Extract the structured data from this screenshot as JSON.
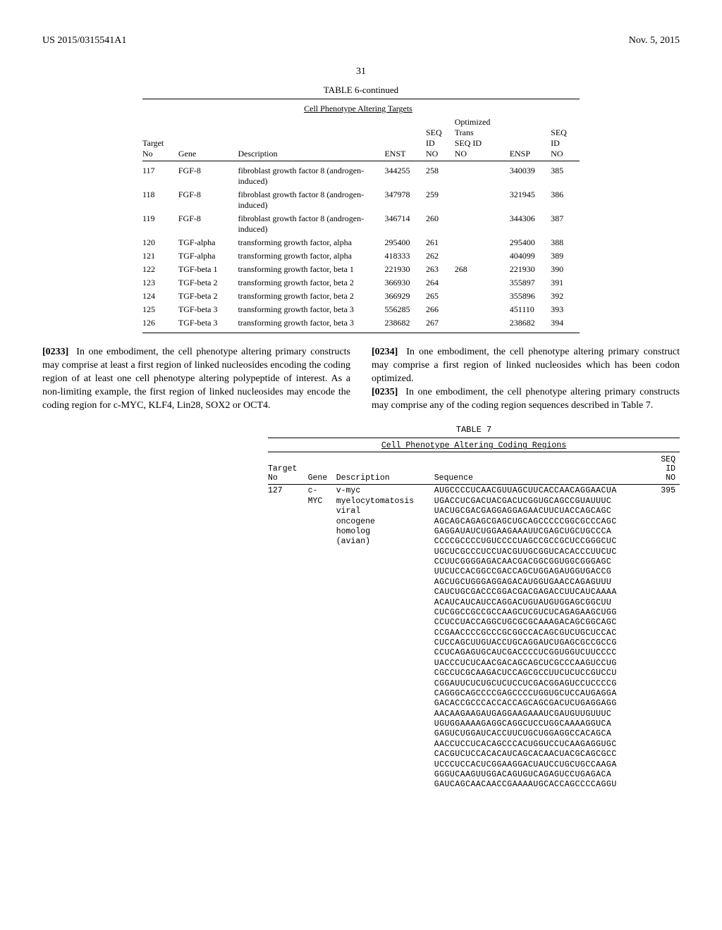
{
  "header": {
    "left": "US 2015/0315541A1",
    "right": "Nov. 5, 2015",
    "page": "31"
  },
  "table6": {
    "caption": "TABLE 6-continued",
    "subtitle": "Cell Phenotype Altering Targets",
    "columns": {
      "c1": "Target\nNo",
      "c2": "Gene",
      "c3": "Description",
      "c4": "ENST",
      "c5": "SEQ\nID\nNO",
      "c6": "Optimized\nTrans\nSEQ ID\nNO",
      "c7": "ENSP",
      "c8": "SEQ\nID\nNO"
    },
    "rows": [
      {
        "no": "117",
        "gene": "FGF-8",
        "desc": "fibroblast growth factor 8 (androgen-induced)",
        "enst": "344255",
        "seq1": "258",
        "opt": "",
        "ensp": "340039",
        "seq2": "385"
      },
      {
        "no": "118",
        "gene": "FGF-8",
        "desc": "fibroblast growth factor 8 (androgen-induced)",
        "enst": "347978",
        "seq1": "259",
        "opt": "",
        "ensp": "321945",
        "seq2": "386"
      },
      {
        "no": "119",
        "gene": "FGF-8",
        "desc": "fibroblast growth factor 8 (androgen-induced)",
        "enst": "346714",
        "seq1": "260",
        "opt": "",
        "ensp": "344306",
        "seq2": "387"
      },
      {
        "no": "120",
        "gene": "TGF-alpha",
        "desc": "transforming growth factor, alpha",
        "enst": "295400",
        "seq1": "261",
        "opt": "",
        "ensp": "295400",
        "seq2": "388"
      },
      {
        "no": "121",
        "gene": "TGF-alpha",
        "desc": "transforming growth factor, alpha",
        "enst": "418333",
        "seq1": "262",
        "opt": "",
        "ensp": "404099",
        "seq2": "389"
      },
      {
        "no": "122",
        "gene": "TGF-beta 1",
        "desc": "transforming growth factor, beta 1",
        "enst": "221930",
        "seq1": "263",
        "opt": "268",
        "ensp": "221930",
        "seq2": "390"
      },
      {
        "no": "123",
        "gene": "TGF-beta 2",
        "desc": "transforming growth factor, beta 2",
        "enst": "366930",
        "seq1": "264",
        "opt": "",
        "ensp": "355897",
        "seq2": "391"
      },
      {
        "no": "124",
        "gene": "TGF-beta 2",
        "desc": "transforming growth factor, beta 2",
        "enst": "366929",
        "seq1": "265",
        "opt": "",
        "ensp": "355896",
        "seq2": "392"
      },
      {
        "no": "125",
        "gene": "TGF-beta 3",
        "desc": "transforming growth factor, beta 3",
        "enst": "556285",
        "seq1": "266",
        "opt": "",
        "ensp": "451110",
        "seq2": "393"
      },
      {
        "no": "126",
        "gene": "TGF-beta 3",
        "desc": "transforming growth factor, beta 3",
        "enst": "238682",
        "seq1": "267",
        "opt": "",
        "ensp": "238682",
        "seq2": "394"
      }
    ]
  },
  "paras": {
    "p233_num": "[0233]",
    "p233": "In one embodiment, the cell phenotype altering primary constructs may comprise at least a first region of linked nucleosides encoding the coding region of at least one cell phenotype altering polypeptide of interest. As a non-limiting example, the first region of linked nucleosides may encode the coding region for c-MYC, KLF4, Lin28, SOX2 or OCT4.",
    "p234_num": "[0234]",
    "p234": "In one embodiment, the cell phenotype altering primary construct may comprise a first region of linked nucleosides which has been codon optimized.",
    "p235_num": "[0235]",
    "p235": "In one embodiment, the cell phenotype altering primary constructs may comprise any of the coding region sequences described in Table 7."
  },
  "table7": {
    "caption": "TABLE 7",
    "subtitle": "Cell Phenotype Altering Coding Regions",
    "columns": {
      "c1": "Target\nNo",
      "c2": "Gene",
      "c3": "Description",
      "c4": "Sequence",
      "c5": "SEQ\nID\nNO"
    },
    "row": {
      "no": "127",
      "gene": "c-\nMYC",
      "desc": "v-myc\nmyelocytomatosis\nviral\noncogene\nhomolog\n(avian)",
      "seq": "AUGCCCCUCAACGUUAGCUUCACCAACAGGAACUA\nUGACCUCGACUACGACUCGGUGCAGCCGUAUUUC\nUACUGCGACGAGGAGGAGAACUUCUACCAGCAGC\nAGCAGCAGAGCGAGCUGCAGCCCCCGGCGCCCAGC\nGAGGAUAUCUGGAAGAAAUUCGAGCUGCUGCCCA\nCCCCGCCCCUGUCCCCUAGCCGCCGCUCCGGGCUC\nUGCUCGCCCUCCUACGUUGCGGUCACACCCUUCUC\nCCUUCGGGGAGACAACGACGGCGGUGGCGGGAGC\nUUCUCCACGGCCGACCAGCUGGAGAUGGUGACCG\nAGCUGCUGGGAGGAGACAUGGUGAACCAGAGUUU\nCAUCUGCGACCCGGACGACGAGACCUUCAUCAAAA\nACAUCAUCAUCCAGGACUGUAUGUGGAGCGGCUU\nCUCGGCCGCCGCCAAGCUCGUCUCAGAGAAGCUGG\nCCUCCUACCAGGCUGCGCGCAAAGACAGCGGCAGC\nCCGAACCCCGCCCGCGGCCACAGCGUCUGCUCCAC\nCUCCAGCUUGUACCUGCAGGAUCUGAGCGCCGCCG\nCCUCAGAGUGCAUCGACCCCUCGGUGGUCUUCCCC\nUACCCUCUCAACGACAGCAGCUCGCCCAAGUCCUG\nCGCCUCGCAAGACUCCAGCGCCUUCUCUCCGUCCU\nCGGAUUCUCUGCUCUCCUCGACGGAGUCCUCCCCG\nCAGGGCAGCCCCGAGCCCCUGGUGCUCCAUGAGGA\nGACACCGCCCACCACCAGCAGCGACUCUGAGGAGG\nAACAAGAAGAUGAGGAAGAAAUCGAUGUUGUUUC\nUGUGGAAAAGAGGCAGGCUCCUGGCAAAAGGUCA\nGAGUCUGGAUCACCUUCUGCUGGAGGCCACAGCA\nAACCUCCUCACAGCCCACUGGUCCUCAAGAGGUGC\nCACGUCUCCACACAUCAGCACAACUACGCAGCGCC\nUCCCUCCACUCGGAAGGACUAUCCUGCUGCCAAGA\nGGGUCAAGUUGGACAGUGUCAGAGUCCUGAGACA\nGAUCAGCAACAACCGAAAAUGCACCAGCCCCAGGU",
      "seqid": "395"
    }
  }
}
